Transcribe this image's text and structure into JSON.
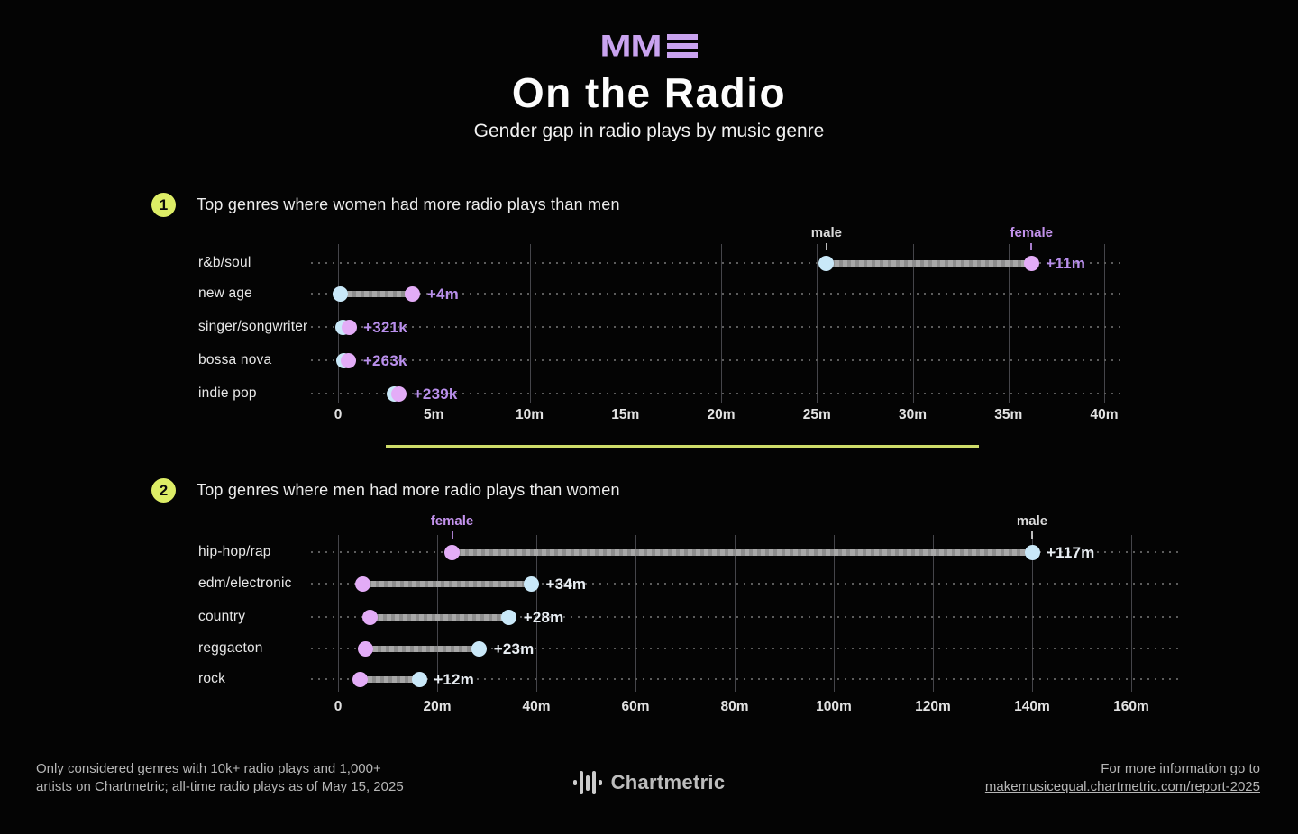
{
  "header": {
    "logo_letters": "MM",
    "logo_icon": "triple-bar-icon",
    "title": "On the Radio",
    "subtitle": "Gender gap in radio plays by music genre"
  },
  "sections": [
    {
      "badge": "1",
      "heading": "Top genres where women had more radio plays than men"
    },
    {
      "badge": "2",
      "heading": "Top genres where men had more radio plays than women"
    }
  ],
  "colors": {
    "accent_purple": "#c9a3ef",
    "female_dot": "#e3acf7",
    "male_dot": "#c9e8f8",
    "female_value_text": "#b98fec",
    "male_value_text": "#e9eef3",
    "male_annotation_text": "#dcdcdc",
    "female_annotation_text": "#c493ee",
    "badge_fill": "#dded66",
    "divider": "#cfdc6a",
    "connector_bar": "#9f9f9f"
  },
  "chart_data": [
    {
      "type": "dumbbell",
      "title": "Top genres where women had more radio plays than men",
      "x_unit": "all-time radio plays (millions)",
      "xlim": [
        0,
        40
      ],
      "tick_values": [
        0,
        5,
        10,
        15,
        20,
        25,
        30,
        35,
        40
      ],
      "tick_labels": [
        "0",
        "5m",
        "10m",
        "15m",
        "20m",
        "25m",
        "30m",
        "35m",
        "40m"
      ],
      "leader": "female",
      "grid": "vertical-solid-plus-horizontal-dotted",
      "rows": [
        {
          "genre": "r&b/soul",
          "male": 25.5,
          "female": 36.2,
          "gap_label": "+11m"
        },
        {
          "genre": "new age",
          "male": 0.1,
          "female": 3.9,
          "gap_label": "+4m"
        },
        {
          "genre": "singer/songwriter",
          "male": 0.25,
          "female": 0.57,
          "gap_label": "+321k"
        },
        {
          "genre": "bossa nova",
          "male": 0.3,
          "female": 0.56,
          "gap_label": "+263k"
        },
        {
          "genre": "indie pop",
          "male": 2.95,
          "female": 3.19,
          "gap_label": "+239k"
        }
      ],
      "annotations": [
        {
          "text": "male",
          "anchor": "male",
          "row": 0
        },
        {
          "text": "female",
          "anchor": "female",
          "row": 0
        }
      ]
    },
    {
      "type": "dumbbell",
      "title": "Top genres where men had more radio plays than women",
      "x_unit": "all-time radio plays (millions)",
      "xlim": [
        0,
        160
      ],
      "tick_values": [
        0,
        20,
        40,
        60,
        80,
        100,
        120,
        140,
        160
      ],
      "tick_labels": [
        "0",
        "20m",
        "40m",
        "60m",
        "80m",
        "100m",
        "120m",
        "140m",
        "160m"
      ],
      "leader": "male",
      "grid": "vertical-solid-plus-horizontal-dotted",
      "rows": [
        {
          "genre": "hip-hop/rap",
          "female": 23,
          "male": 140,
          "gap_label": "+117m"
        },
        {
          "genre": "edm/electronic",
          "female": 5,
          "male": 39,
          "gap_label": "+34m"
        },
        {
          "genre": "country",
          "female": 6.5,
          "male": 34.5,
          "gap_label": "+28m"
        },
        {
          "genre": "reggaeton",
          "female": 5.5,
          "male": 28.5,
          "gap_label": "+23m"
        },
        {
          "genre": "rock",
          "female": 4.4,
          "male": 16.4,
          "gap_label": "+12m"
        }
      ],
      "annotations": [
        {
          "text": "female",
          "anchor": "female",
          "row": 0
        },
        {
          "text": "male",
          "anchor": "male",
          "row": 0
        }
      ]
    }
  ],
  "footer": {
    "note_line1": "Only considered genres with 10k+ radio plays and 1,000+",
    "note_line2": "artists on Chartmetric; all-time radio plays as of May 15, 2025",
    "brand": "Chartmetric",
    "brand_icon": "waveform-icon",
    "info_line1": "For more information go to",
    "info_link": "makemusicequal.chartmetric.com/report-2025"
  }
}
